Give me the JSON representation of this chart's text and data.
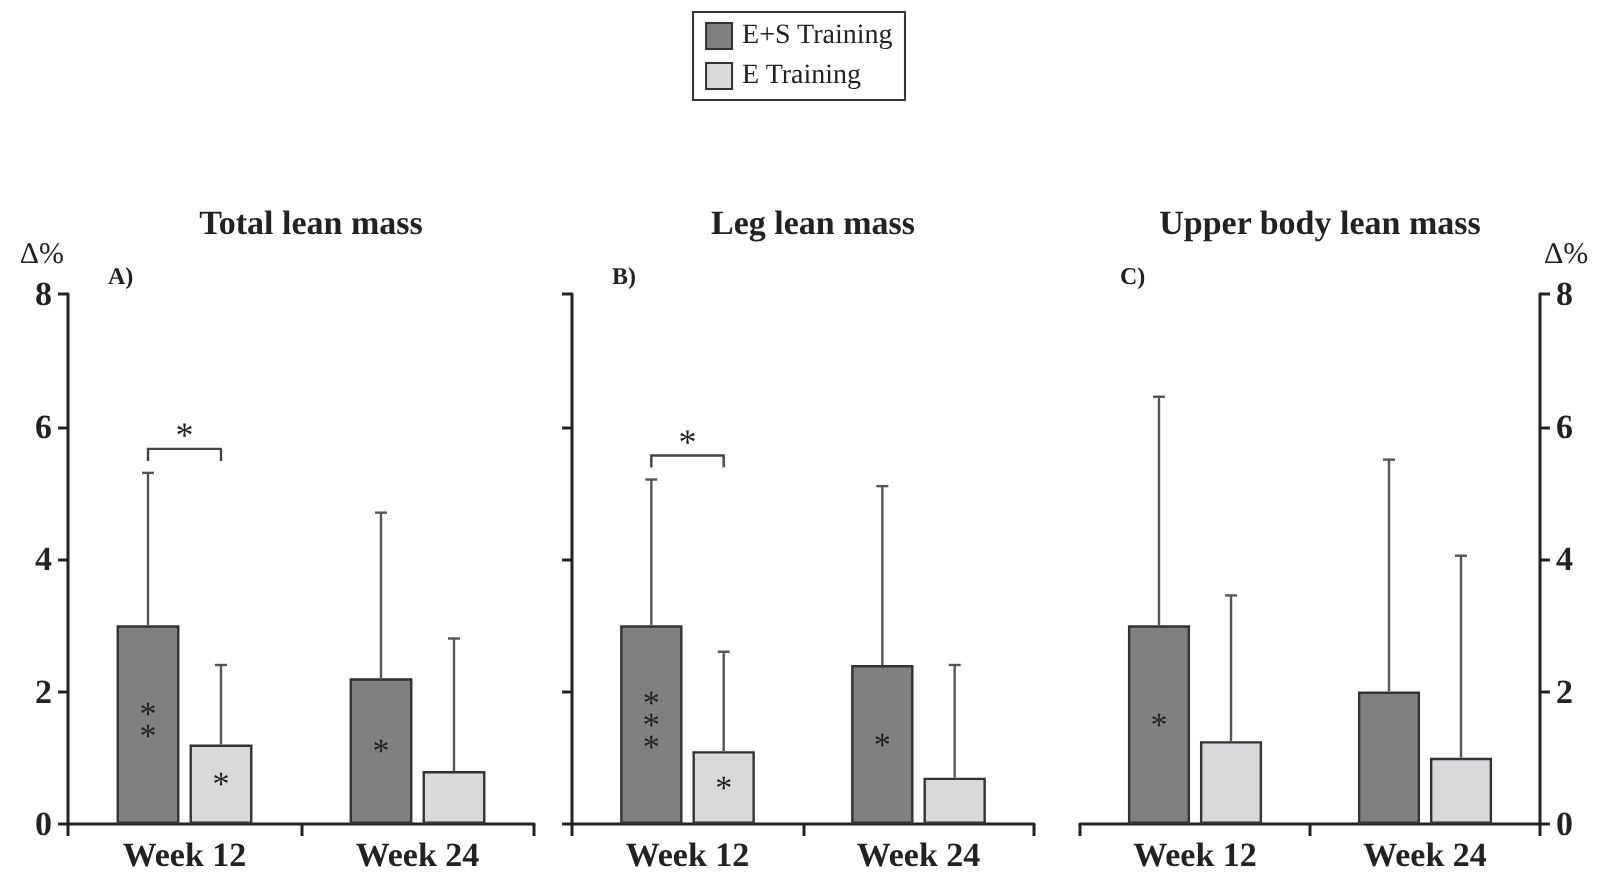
{
  "chart_data": [
    {
      "type": "bar",
      "title": "Total lean mass",
      "ylabel": "Δ%",
      "categories": [
        "Week 12",
        "Week 24"
      ],
      "ylim": [
        0,
        8
      ],
      "yticks": [
        0,
        2,
        4,
        6,
        8
      ],
      "legend": "top",
      "annotations": [
        "A)",
        "*"
      ],
      "series": [
        {
          "name": "E+S Training",
          "color": "#808083",
          "values": [
            3.0,
            2.2
          ],
          "errors": [
            [
              3.0,
              5.3
            ],
            [
              2.2,
              4.7
            ]
          ],
          "value_labels": [
            "**",
            "*"
          ]
        },
        {
          "name": "E Training",
          "color": "#d9d9db",
          "values": [
            1.2,
            0.8
          ],
          "errors": [
            [
              1.2,
              2.4
            ],
            [
              0.8,
              2.8
            ]
          ],
          "value_labels": [
            "*",
            null
          ]
        }
      ]
    },
    {
      "type": "bar",
      "title": "Leg lean mass",
      "categories": [
        "Week 12",
        "Week 24"
      ],
      "ylim": [
        0,
        8
      ],
      "yticks": [
        0,
        2,
        4,
        6,
        8
      ],
      "tick_labels": "x",
      "annotations": [
        "B)",
        "*"
      ],
      "series": [
        {
          "color": "#808083",
          "values": [
            3.0,
            2.4
          ],
          "errors": [
            [
              3.0,
              5.2
            ],
            [
              2.4,
              5.1
            ]
          ],
          "value_labels": [
            "***",
            "*"
          ]
        },
        {
          "color": "#d9d9db",
          "values": [
            1.1,
            0.7
          ],
          "errors": [
            [
              1.1,
              2.6
            ],
            [
              0.7,
              2.4
            ]
          ],
          "value_labels": [
            "*",
            null
          ]
        }
      ]
    },
    {
      "type": "bar",
      "title": "Upper body lean mass",
      "y2label": "Δ%",
      "categories": [
        "Week 12",
        "Week 24"
      ],
      "y2lim": [
        0,
        8
      ],
      "y2ticks": [
        0,
        2,
        4,
        6,
        8
      ],
      "annotations": [
        "C)"
      ],
      "series": [
        {
          "color": "#808083",
          "axis": "y2",
          "values": [
            3.0,
            2.0
          ],
          "errors": [
            [
              3.0,
              6.45
            ],
            [
              2.0,
              5.5
            ]
          ],
          "value_labels": [
            "*",
            null
          ]
        },
        {
          "color": "#d9d9db",
          "axis": "y2",
          "values": [
            1.25,
            1.0
          ],
          "errors": [
            [
              1.25,
              3.45
            ],
            [
              1.0,
              4.05
            ]
          ]
        }
      ]
    }
  ]
}
